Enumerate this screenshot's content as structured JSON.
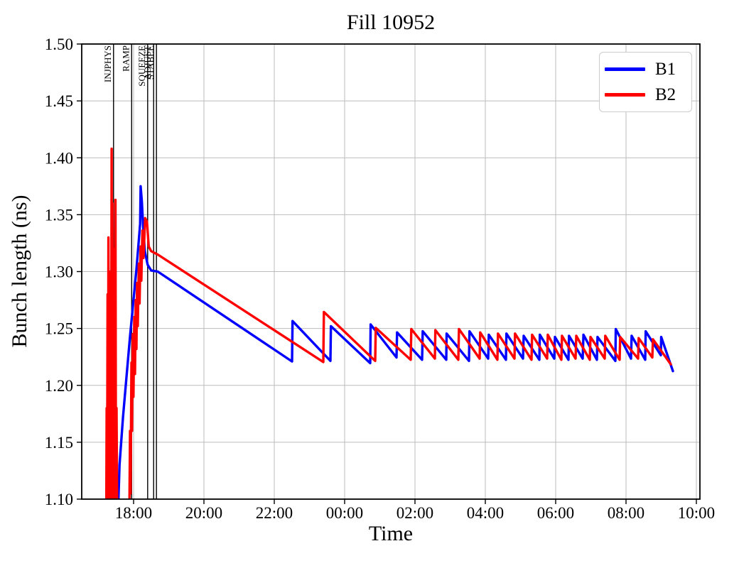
{
  "chart_data": {
    "type": "line",
    "title": "Fill 10952",
    "xlabel": "Time",
    "ylabel": "Bunch length (ns)",
    "x_unit": "hours relative to 18:00",
    "xlim": [
      -1.4747,
      16.101
    ],
    "ylim": [
      1.1,
      1.5
    ],
    "grid": true,
    "grid_color": "#bbbbbb",
    "axis_color": "#000000",
    "x_ticks": [
      {
        "t": 0,
        "label": "18:00"
      },
      {
        "t": 2,
        "label": "20:00"
      },
      {
        "t": 4,
        "label": "22:00"
      },
      {
        "t": 6,
        "label": "00:00"
      },
      {
        "t": 8,
        "label": "02:00"
      },
      {
        "t": 10,
        "label": "04:00"
      },
      {
        "t": 12,
        "label": "06:00"
      },
      {
        "t": 14,
        "label": "08:00"
      },
      {
        "t": 16,
        "label": "10:00"
      }
    ],
    "y_ticks": [
      {
        "v": 1.1,
        "label": "1.10"
      },
      {
        "v": 1.15,
        "label": "1.15"
      },
      {
        "v": 1.2,
        "label": "1.20"
      },
      {
        "v": 1.25,
        "label": "1.25"
      },
      {
        "v": 1.3,
        "label": "1.30"
      },
      {
        "v": 1.35,
        "label": "1.35"
      },
      {
        "v": 1.4,
        "label": "1.40"
      },
      {
        "v": 1.45,
        "label": "1.45"
      },
      {
        "v": 1.5,
        "label": "1.50"
      }
    ],
    "event_lines": [
      {
        "label": "INJPHYS",
        "t": -0.57
      },
      {
        "label": "RAMP",
        "t": -0.055
      },
      {
        "label": "SQUEEZE",
        "t": 0.4
      },
      {
        "label": "ADJUST",
        "t": 0.57
      },
      {
        "label": "STABLE",
        "t": 0.65
      }
    ],
    "legend": {
      "position": "upper right",
      "entries": [
        {
          "label": "B1",
          "color": "#0000ff"
        },
        {
          "label": "B2",
          "color": "#ff0000"
        }
      ]
    },
    "series": [
      {
        "name": "B1",
        "color": "#0000ff",
        "points": [
          [
            -0.76,
            1.05
          ],
          [
            -0.75,
            1.168
          ],
          [
            -0.74,
            1.06
          ],
          [
            -0.72,
            1.13
          ],
          [
            -0.705,
            1.085
          ],
          [
            -0.67,
            1.115
          ],
          [
            -0.65,
            1.06
          ],
          [
            -0.55,
            1.05
          ],
          [
            -0.44,
            1.09
          ],
          [
            -0.4,
            1.13
          ],
          [
            -0.3,
            1.172
          ],
          [
            -0.2,
            1.208
          ],
          [
            -0.1,
            1.243
          ],
          [
            0.0,
            1.276
          ],
          [
            0.08,
            1.302
          ],
          [
            0.14,
            1.324
          ],
          [
            0.165,
            1.334
          ],
          [
            0.185,
            1.342
          ],
          [
            0.2,
            1.375
          ],
          [
            0.235,
            1.362
          ],
          [
            0.27,
            1.34
          ],
          [
            0.32,
            1.318
          ],
          [
            0.4,
            1.306
          ],
          [
            0.5,
            1.301
          ],
          [
            0.687,
            1.3
          ],
          [
            4.505,
            1.221
          ],
          [
            4.52,
            1.2565
          ],
          [
            5.596,
            1.2215
          ],
          [
            5.61,
            1.252
          ],
          [
            6.727,
            1.2195
          ],
          [
            6.74,
            1.2535
          ],
          [
            7.475,
            1.2245
          ],
          [
            7.49,
            1.2465
          ],
          [
            8.202,
            1.2225
          ],
          [
            8.22,
            1.2475
          ],
          [
            8.889,
            1.2225
          ],
          [
            8.9,
            1.2455
          ],
          [
            9.535,
            1.2215
          ],
          [
            9.55,
            1.2475
          ],
          [
            10.081,
            1.2235
          ],
          [
            10.1,
            1.2445
          ],
          [
            10.586,
            1.2225
          ],
          [
            10.6,
            1.2455
          ],
          [
            11.071,
            1.2235
          ],
          [
            11.09,
            1.2435
          ],
          [
            11.535,
            1.2225
          ],
          [
            11.55,
            1.2445
          ],
          [
            11.96,
            1.2235
          ],
          [
            11.98,
            1.2425
          ],
          [
            12.364,
            1.2225
          ],
          [
            12.38,
            1.2435
          ],
          [
            12.768,
            1.2235
          ],
          [
            12.79,
            1.2445
          ],
          [
            13.172,
            1.2225
          ],
          [
            13.19,
            1.2425
          ],
          [
            13.697,
            1.2215
          ],
          [
            13.71,
            1.2495
          ],
          [
            14.141,
            1.2235
          ],
          [
            14.16,
            1.2435
          ],
          [
            14.545,
            1.2225
          ],
          [
            14.56,
            1.2475
          ],
          [
            14.99,
            1.2265
          ],
          [
            15.0,
            1.2425
          ],
          [
            15.333,
            1.2125
          ]
        ]
      },
      {
        "name": "B2",
        "color": "#ff0000",
        "points": [
          [
            -0.78,
            1.05
          ],
          [
            -0.765,
            1.18
          ],
          [
            -0.755,
            1.07
          ],
          [
            -0.74,
            1.28
          ],
          [
            -0.73,
            1.08
          ],
          [
            -0.715,
            1.33
          ],
          [
            -0.7,
            1.09
          ],
          [
            -0.685,
            1.24
          ],
          [
            -0.67,
            1.08
          ],
          [
            -0.655,
            1.3
          ],
          [
            -0.64,
            1.09
          ],
          [
            -0.625,
            1.408
          ],
          [
            -0.615,
            1.09
          ],
          [
            -0.6,
            1.36
          ],
          [
            -0.585,
            1.09
          ],
          [
            -0.565,
            1.32
          ],
          [
            -0.55,
            1.08
          ],
          [
            -0.515,
            1.363
          ],
          [
            -0.5,
            1.09
          ],
          [
            -0.485,
            1.18
          ],
          [
            -0.465,
            1.07
          ],
          [
            -0.3,
            1.05
          ],
          [
            -0.13,
            1.05
          ],
          [
            -0.1,
            1.16
          ],
          [
            -0.085,
            1.105
          ],
          [
            -0.06,
            1.22
          ],
          [
            -0.045,
            1.16
          ],
          [
            -0.025,
            1.245
          ],
          [
            -0.005,
            1.19
          ],
          [
            0.02,
            1.26
          ],
          [
            0.04,
            1.21
          ],
          [
            0.06,
            1.275
          ],
          [
            0.08,
            1.232
          ],
          [
            0.1,
            1.29
          ],
          [
            0.12,
            1.252
          ],
          [
            0.15,
            1.307
          ],
          [
            0.17,
            1.272
          ],
          [
            0.2,
            1.322
          ],
          [
            0.22,
            1.292
          ],
          [
            0.25,
            1.336
          ],
          [
            0.28,
            1.312
          ],
          [
            0.33,
            1.347
          ],
          [
            0.38,
            1.344
          ],
          [
            0.43,
            1.322
          ],
          [
            0.5,
            1.318
          ],
          [
            0.687,
            1.315
          ],
          [
            5.394,
            1.2205
          ],
          [
            5.41,
            1.2645
          ],
          [
            6.869,
            1.2215
          ],
          [
            6.885,
            1.2505
          ],
          [
            7.879,
            1.2225
          ],
          [
            7.895,
            1.2495
          ],
          [
            8.566,
            1.2235
          ],
          [
            8.58,
            1.2485
          ],
          [
            9.232,
            1.2225
          ],
          [
            9.25,
            1.2495
          ],
          [
            9.838,
            1.2235
          ],
          [
            9.855,
            1.2465
          ],
          [
            10.343,
            1.2225
          ],
          [
            10.36,
            1.2455
          ],
          [
            10.828,
            1.2235
          ],
          [
            10.845,
            1.2455
          ],
          [
            11.313,
            1.2225
          ],
          [
            11.33,
            1.2445
          ],
          [
            11.758,
            1.2235
          ],
          [
            11.775,
            1.2445
          ],
          [
            12.162,
            1.2225
          ],
          [
            12.18,
            1.2435
          ],
          [
            12.566,
            1.2235
          ],
          [
            12.585,
            1.2435
          ],
          [
            12.97,
            1.2225
          ],
          [
            12.99,
            1.2425
          ],
          [
            13.394,
            1.2235
          ],
          [
            13.41,
            1.2435
          ],
          [
            13.818,
            1.2225
          ],
          [
            13.835,
            1.2425
          ],
          [
            14.343,
            1.2235
          ],
          [
            14.36,
            1.2415
          ],
          [
            14.747,
            1.2245
          ],
          [
            14.765,
            1.2405
          ],
          [
            15.273,
            1.2185
          ]
        ]
      }
    ]
  }
}
